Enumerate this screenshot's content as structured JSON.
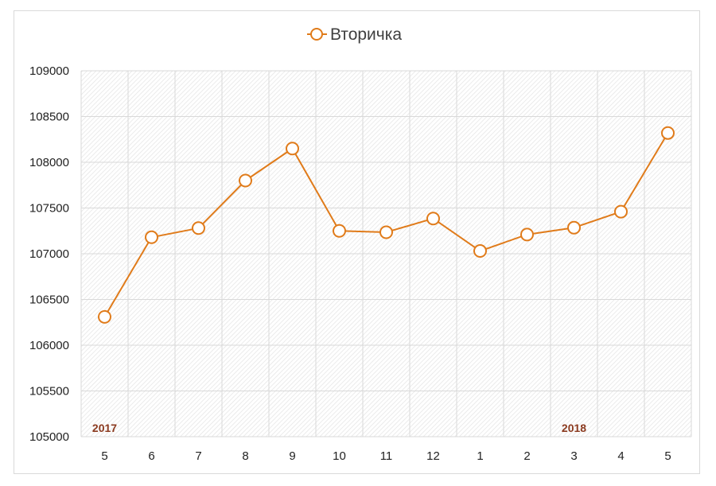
{
  "chart_data": {
    "type": "line",
    "title": "",
    "xlabel": "",
    "ylabel": "",
    "categories": [
      "5",
      "6",
      "7",
      "8",
      "9",
      "10",
      "11",
      "12",
      "1",
      "2",
      "3",
      "4",
      "5"
    ],
    "series": [
      {
        "name": "Вторичка",
        "values": [
          106310,
          107180,
          107280,
          107800,
          108150,
          107250,
          107235,
          107385,
          107030,
          107210,
          107285,
          107460,
          108320
        ]
      }
    ],
    "ylim": [
      105000,
      109000
    ],
    "yticks": [
      105000,
      105500,
      106000,
      106500,
      107000,
      107500,
      108000,
      108500,
      109000
    ],
    "grid": true,
    "legend_position": "top-center",
    "annotations": [
      {
        "text": "2017",
        "category_index": 0
      },
      {
        "text": "2018",
        "category_index": 10
      }
    ],
    "colors": {
      "line": "#e07b1a",
      "marker_fill": "#ffffff",
      "grid": "#d9d9d9",
      "year_text": "#8b3a1f"
    }
  }
}
